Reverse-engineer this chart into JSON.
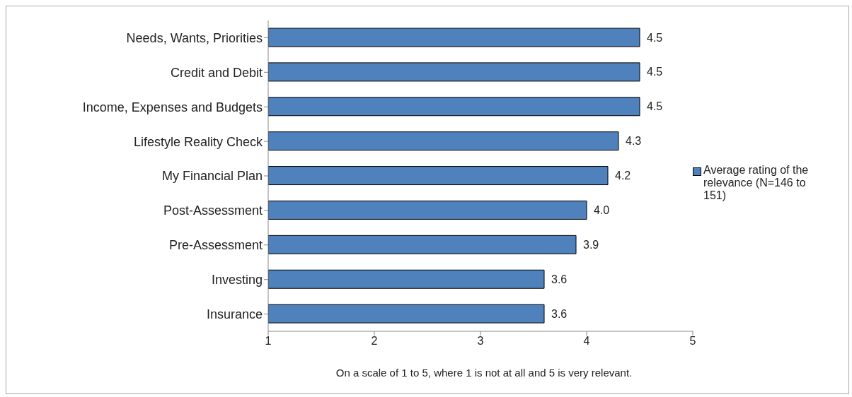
{
  "chart_data": {
    "type": "bar",
    "orientation": "horizontal",
    "xlabel": "On a scale of 1 to 5, where 1 is not at all and 5 is very relevant.",
    "categories": [
      "Needs, Wants, Priorities",
      "Credit and Debit",
      "Income, Expenses and Budgets",
      "Lifestyle Reality Check",
      "My Financial Plan",
      "Post-Assessment",
      "Pre-Assessment",
      "Investing",
      "Insurance"
    ],
    "series": [
      {
        "name": "Average rating of the relevance (N=146 to 151)",
        "color": "#4f81bd",
        "values": [
          4.5,
          4.5,
          4.5,
          4.3,
          4.2,
          4.0,
          3.9,
          3.6,
          3.6
        ],
        "value_labels": [
          "4.5",
          "4.5",
          "4.5",
          "4.3",
          "4.2",
          "4.0",
          "3.9",
          "3.6",
          "3.6"
        ]
      }
    ],
    "xlim": [
      1,
      5
    ],
    "xticks": [
      1,
      2,
      3,
      4,
      5
    ],
    "legend": "right"
  }
}
